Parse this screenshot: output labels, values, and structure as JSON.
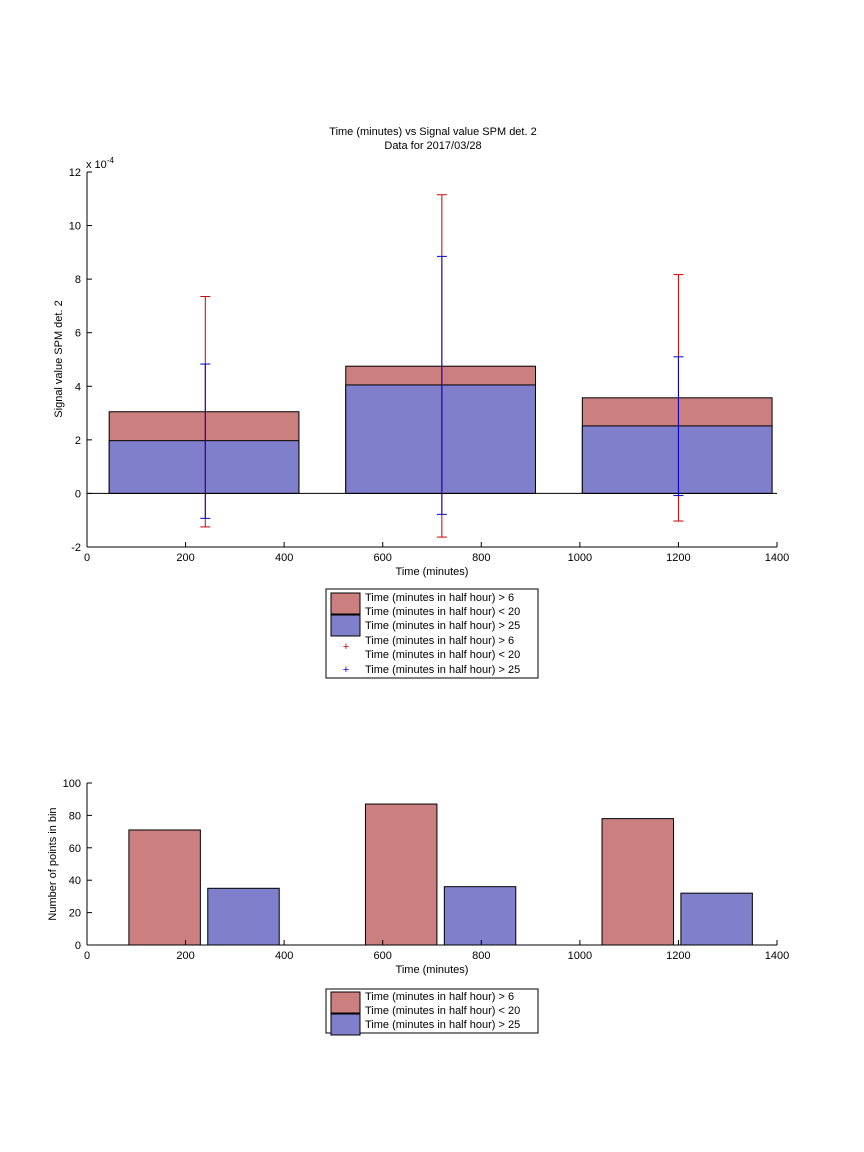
{
  "chart_data": [
    {
      "type": "bar",
      "title": "Time (minutes) vs Signal value SPM det. 2",
      "subtitle": "Data for 2017/03/28",
      "xlabel": "Time (minutes)",
      "ylabel": "Signal value SPM det. 2",
      "exponent_label": "x 10",
      "exponent_power": "-4",
      "xlim": [
        0,
        1400
      ],
      "ylim": [
        -2,
        12
      ],
      "xticks": [
        "0",
        "200",
        "400",
        "600",
        "800",
        "1000",
        "1200",
        "1400"
      ],
      "yticks": [
        "-2",
        "0",
        "2",
        "4",
        "6",
        "8",
        "10",
        "12"
      ],
      "bins": [
        {
          "x0": 45,
          "x1": 430,
          "center": 240
        },
        {
          "x0": 525,
          "x1": 910,
          "center": 720
        },
        {
          "x0": 1005,
          "x1": 1390,
          "center": 1200
        }
      ],
      "series": [
        {
          "legend": "Time (minutes in half hour) > 6 Time (minutes in half hour) < 20",
          "color": "#cc7f7f",
          "values": [
            3.05,
            4.75,
            3.57
          ]
        },
        {
          "legend": "Time (minutes in half hour) > 25",
          "color": "#7f7fcc",
          "values": [
            1.97,
            4.05,
            2.52
          ]
        }
      ],
      "errorbars": [
        {
          "legend_line1": "Time (minutes in half hour) > 6",
          "legend_line2": "Time (minutes in half hour) < 20",
          "color": "#cc0000",
          "lower": [
            -1.25,
            -1.63,
            -1.03
          ],
          "upper": [
            7.35,
            11.15,
            8.17
          ]
        },
        {
          "legend_line1": "Time (minutes in half hour) > 25",
          "color": "#0000cc",
          "lower": [
            -0.93,
            -0.78,
            -0.08
          ],
          "upper": [
            4.83,
            8.85,
            5.1
          ]
        }
      ],
      "legend": {
        "bar1_line1": "Time (minutes in half hour) > 6",
        "bar1_line2": "Time (minutes in half hour) < 20",
        "bar2": "Time (minutes in half hour) > 25",
        "err1_line1": "Time (minutes in half hour) > 6",
        "err1_line2": "Time (minutes in half hour) < 20",
        "err2": "Time (minutes in half hour) > 25"
      }
    },
    {
      "type": "bar",
      "xlabel": "Time (minutes)",
      "ylabel": "Number of points in bin",
      "xlim": [
        0,
        1400
      ],
      "ylim": [
        0,
        100
      ],
      "xticks": [
        "0",
        "200",
        "400",
        "600",
        "800",
        "1000",
        "1200",
        "1400"
      ],
      "yticks": [
        "0",
        "20",
        "40",
        "60",
        "80",
        "100"
      ],
      "series": [
        {
          "legend_line1": "Time (minutes in half hour) > 6",
          "legend_line2": "Time (minutes in half hour) < 20",
          "color": "#cc7f7f",
          "bars": [
            {
              "x0": 85,
              "x1": 230,
              "value": 71
            },
            {
              "x0": 565,
              "x1": 710,
              "value": 87
            },
            {
              "x0": 1045,
              "x1": 1190,
              "value": 78
            }
          ]
        },
        {
          "legend_line1": "Time (minutes in half hour) > 25",
          "color": "#7f7fcc",
          "bars": [
            {
              "x0": 245,
              "x1": 390,
              "value": 35
            },
            {
              "x0": 725,
              "x1": 870,
              "value": 36
            },
            {
              "x0": 1205,
              "x1": 1350,
              "value": 32
            }
          ]
        }
      ],
      "legend": {
        "bar1_line1": "Time (minutes in half hour) > 6",
        "bar1_line2": "Time (minutes in half hour) < 20",
        "bar2": "Time (minutes in half hour) > 25"
      }
    }
  ]
}
